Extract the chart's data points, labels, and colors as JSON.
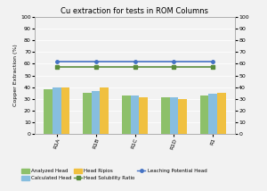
{
  "title": "Cu extraction for tests in ROM Columns",
  "categories": [
    "R1A",
    "R1B",
    "R1C",
    "R1D",
    "R1"
  ],
  "analyzed_head": [
    38.5,
    35.0,
    32.5,
    31.0,
    33.0
  ],
  "calculated_head": [
    39.5,
    36.5,
    32.5,
    31.0,
    34.0
  ],
  "head_ripios": [
    40.0,
    40.0,
    31.0,
    29.5,
    35.0
  ],
  "head_solubility_ratio": [
    57.0,
    57.0,
    57.0,
    57.0,
    57.0
  ],
  "leaching_potential_head": [
    62.0,
    62.0,
    62.0,
    62.0,
    62.0
  ],
  "ylabel": "Copper Extraction (%)",
  "ylim": [
    0,
    100
  ],
  "yticks": [
    0,
    10,
    20,
    30,
    40,
    50,
    60,
    70,
    80,
    90,
    100
  ],
  "color_analyzed": "#8DC06A",
  "color_calculated": "#87BEDF",
  "color_ripios": "#F0C040",
  "color_solubility": "#5A8C3C",
  "color_leaching": "#4472C4",
  "bar_width": 0.22,
  "background_color": "#F2F2F2",
  "plot_bg_color": "#F2F2F2",
  "grid_color": "#FFFFFF"
}
